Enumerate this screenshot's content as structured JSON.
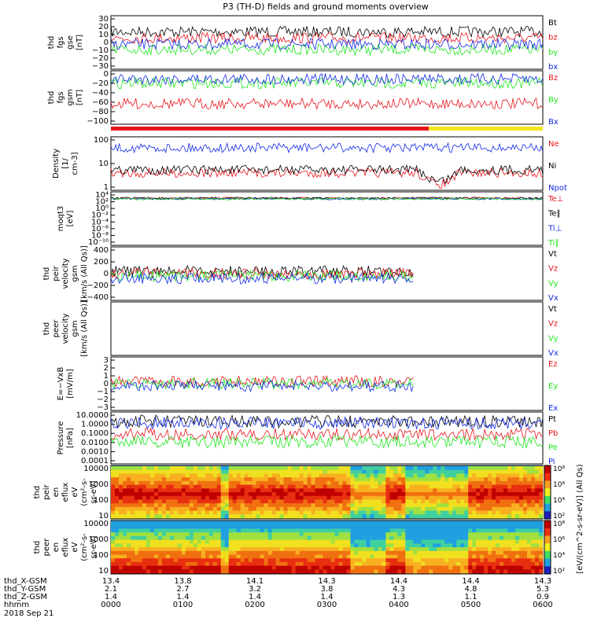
{
  "title": "P3 (TH-D) fields and ground moments overview",
  "colors": {
    "black": "#000000",
    "red": "#e8141c",
    "green": "#1ee81e",
    "blue": "#1228e6",
    "yellow": "#f5e51a"
  },
  "chart_data": [
    {
      "type": "line",
      "id": "fgs-gse",
      "ylabel_lines": [
        "thd",
        "fgs",
        "gse",
        "[nT]"
      ],
      "ylim": [
        -30,
        30
      ],
      "yticks": [
        "30",
        "20",
        "10",
        "0",
        "−10",
        "−20",
        "−30"
      ],
      "series": [
        {
          "name": "Bt",
          "color": "black",
          "level": 12
        },
        {
          "name": "bz",
          "color": "red",
          "level": 5
        },
        {
          "name": "by",
          "color": "green",
          "level": -8
        },
        {
          "name": "bx",
          "color": "blue",
          "level": -2
        }
      ]
    },
    {
      "type": "line",
      "id": "fgs-gsm",
      "ylabel_lines": [
        "thd",
        "fgs",
        "gsm",
        "[nT]"
      ],
      "ylim": [
        -110,
        20
      ],
      "yticks": [
        "0",
        "−20",
        "−40",
        "−60",
        "−80",
        "−100"
      ],
      "series": [
        {
          "name": "Bz",
          "color": "red",
          "level": -60
        },
        {
          "name": "By",
          "color": "green",
          "level": -10
        },
        {
          "name": "Bx",
          "color": "blue",
          "level": 0
        }
      ]
    },
    {
      "type": "bar",
      "id": "region-bar",
      "segments": [
        {
          "color": "red",
          "start": "0000",
          "end": "0425"
        },
        {
          "color": "yellow",
          "start": "0425",
          "end": "0600"
        }
      ]
    },
    {
      "type": "line",
      "id": "density",
      "scale": "log",
      "ylabel_lines": [
        "Density",
        "[1/",
        "cm-3]"
      ],
      "yticks": [
        "100",
        "10",
        "1"
      ],
      "series": [
        {
          "name": "Ne",
          "color": "red",
          "level": 8
        },
        {
          "name": "Ni",
          "color": "black",
          "level": 12
        },
        {
          "name": "Npot",
          "color": "blue",
          "level": 30
        }
      ]
    },
    {
      "type": "line",
      "id": "temperature",
      "scale": "log",
      "ylabel_lines": [
        "moqt3",
        "[eV]"
      ],
      "yticks": [
        "10⁴",
        "10²",
        "10⁰",
        "10⁻²",
        "10⁻⁴",
        "10⁻⁶",
        "10⁻⁸",
        "10⁻¹⁰"
      ],
      "series": [
        {
          "name": "Te⊥",
          "color": "red"
        },
        {
          "name": "Te∥",
          "color": "black"
        },
        {
          "name": "Ti⊥",
          "color": "blue"
        },
        {
          "name": "Ti∥",
          "color": "green"
        }
      ]
    },
    {
      "type": "line",
      "id": "peir-velocity",
      "ylabel_lines": [
        "thd",
        "peir",
        "velocity",
        "gsm",
        "[km/s (All Qs)]"
      ],
      "ylim": [
        -400,
        400
      ],
      "yticks": [
        "400",
        "200",
        "0",
        "−200",
        "−400"
      ],
      "series": [
        {
          "name": "Vt",
          "color": "black"
        },
        {
          "name": "Vz",
          "color": "red"
        },
        {
          "name": "Vy",
          "color": "green"
        },
        {
          "name": "Vx",
          "color": "blue"
        }
      ]
    },
    {
      "type": "line",
      "id": "peer-velocity",
      "ylabel_lines": [
        "thd",
        "peer",
        "velocity",
        "gsm",
        "[km/s (All Qs)]"
      ],
      "series": [
        {
          "name": "Vt",
          "color": "black"
        },
        {
          "name": "Vz",
          "color": "red"
        },
        {
          "name": "Vy",
          "color": "green"
        },
        {
          "name": "Vx",
          "color": "blue"
        }
      ]
    },
    {
      "type": "line",
      "id": "efield",
      "ylabel_lines": [
        "E=−VxB",
        "[mV/m]"
      ],
      "ylim": [
        -3,
        3
      ],
      "yticks": [
        "3",
        "2",
        "1",
        "0",
        "−1",
        "−2",
        "−3"
      ],
      "series": [
        {
          "name": "Ez",
          "color": "red"
        },
        {
          "name": "Ey",
          "color": "green"
        },
        {
          "name": "Ex",
          "color": "blue"
        }
      ]
    },
    {
      "type": "line",
      "id": "pressure",
      "scale": "log",
      "ylabel_lines": [
        "Pressure",
        "[nPa]"
      ],
      "yticks": [
        "10.0000",
        "1.0000",
        "0.1000",
        "0.0100",
        "0.0010",
        "0.0001"
      ],
      "series": [
        {
          "name": "Pt",
          "color": "black"
        },
        {
          "name": "Pb",
          "color": "red"
        },
        {
          "name": "Pe",
          "color": "green"
        },
        {
          "name": "Pi",
          "color": "blue"
        }
      ]
    },
    {
      "type": "heatmap",
      "id": "peir-spec",
      "scale": "log",
      "ylabel_lines": [
        "thd",
        "peir",
        "en",
        "eflux",
        "eV",
        "(cm²-s-",
        "sr-eV)"
      ],
      "yticks": [
        "10000",
        "1000",
        "100",
        "10"
      ]
    },
    {
      "type": "heatmap",
      "id": "peer-spec",
      "scale": "log",
      "ylabel_lines": [
        "thd",
        "peer",
        "en",
        "eflux",
        "eV",
        "(cm²-s-",
        "sr-eV)"
      ],
      "yticks": [
        "10000",
        "1000",
        "100",
        "10"
      ]
    }
  ],
  "colorbar": {
    "label": "[eV/(cm^2-s-sr-eV)] (All Qs)",
    "ticks": [
      "10⁸",
      "10⁶",
      "10⁴",
      "10²"
    ]
  },
  "xaxis": {
    "rows": [
      {
        "label": "thd_X-GSM",
        "values": [
          "13.4",
          "13.8",
          "14.1",
          "14.3",
          "14.4",
          "14.4",
          "14.3"
        ]
      },
      {
        "label": "thd_Y-GSM",
        "values": [
          "2.1",
          "2.7",
          "3.2",
          "3.8",
          "4.3",
          "4.8",
          "5.3"
        ]
      },
      {
        "label": "thd_Z-GSM",
        "values": [
          "1.4",
          "1.4",
          "1.4",
          "1.4",
          "1.3",
          "1.1",
          "0.9"
        ]
      },
      {
        "label": "hhmm",
        "values": [
          "0000",
          "0100",
          "0200",
          "0300",
          "0400",
          "0500",
          "0600"
        ]
      }
    ],
    "date": "2018 Sep 21"
  }
}
